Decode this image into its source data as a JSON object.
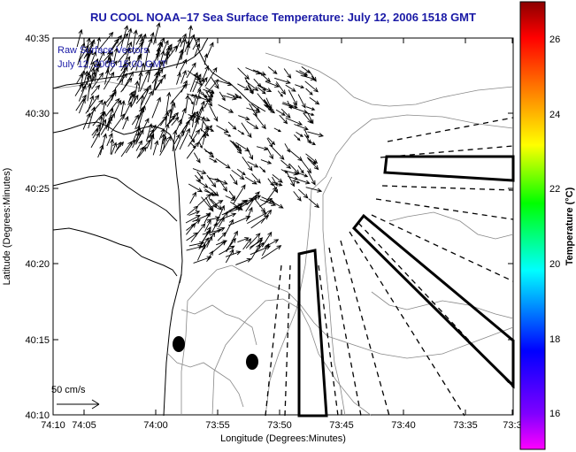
{
  "title": "RU COOL  NOAA–17  Sea Surface Temperature:  July 12, 2006 1518 GMT",
  "annotation": {
    "line1": "Raw Surface Vectors",
    "line2": "July 12, 2006 15:00 GMT"
  },
  "x_axis": {
    "label": "Longitude (Degrees:Minutes)",
    "ticks": [
      "74:10",
      "74:05",
      "74:00",
      "73:55",
      "73:50",
      "73:45",
      "73:40",
      "73:35",
      "73:3"
    ]
  },
  "y_axis": {
    "label": "Latitude (Degrees:Minutes)",
    "ticks": [
      "40:35",
      "40:30",
      "40:25",
      "40:20",
      "40:15",
      "40:10"
    ]
  },
  "colorbar": {
    "label": "Temperature (°C)",
    "ticks": [
      "26",
      "24",
      "22",
      "20",
      "18",
      "16"
    ],
    "colors": [
      "#ff00ff",
      "#7f00ff",
      "#0000ff",
      "#00ffff",
      "#00ff00",
      "#ffff00",
      "#ff8000",
      "#ff0000",
      "#8b0000"
    ]
  },
  "scale_vector": {
    "label": "50 cm/s"
  },
  "colors": {
    "title": "#1a1aa6",
    "coastline": "#000000",
    "bathymetry": "#888888",
    "vectors": "#000000"
  }
}
